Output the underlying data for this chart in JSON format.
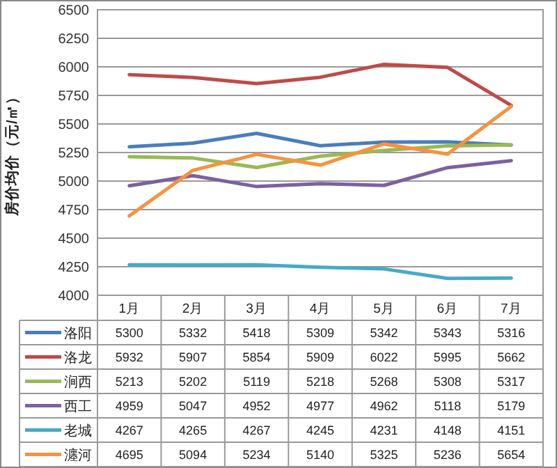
{
  "chart_data": {
    "type": "line",
    "ylabel": "房价均价（元/㎡）",
    "categories": [
      "1月",
      "2月",
      "3月",
      "4月",
      "5月",
      "6月",
      "7月"
    ],
    "ylim": [
      4000,
      6500
    ],
    "yticks": [
      4000,
      4250,
      4500,
      4750,
      5000,
      5250,
      5500,
      5750,
      6000,
      6250,
      6500
    ],
    "grid": "y",
    "legend": "bottom",
    "data_labels": true,
    "marker": "none",
    "line_style": "solid",
    "series": [
      {
        "name": "洛阳",
        "color": "#4a7ebb",
        "values": [
          5300,
          5332,
          5418,
          5309,
          5342,
          5343,
          5316
        ]
      },
      {
        "name": "洛龙",
        "color": "#be4b48",
        "values": [
          5932,
          5907,
          5854,
          5909,
          6022,
          5995,
          5662
        ]
      },
      {
        "name": "涧西",
        "color": "#98b954",
        "values": [
          5213,
          5202,
          5119,
          5218,
          5268,
          5308,
          5317
        ]
      },
      {
        "name": "西工",
        "color": "#7d60a0",
        "values": [
          4959,
          5047,
          4952,
          4977,
          4962,
          5118,
          5179
        ]
      },
      {
        "name": "老城",
        "color": "#46aac5",
        "values": [
          4267,
          4265,
          4267,
          4245,
          4231,
          4148,
          4151
        ]
      },
      {
        "name": "瀍河",
        "color": "#f69240",
        "values": [
          4695,
          5094,
          5234,
          5140,
          5325,
          5236,
          5654
        ]
      }
    ]
  }
}
